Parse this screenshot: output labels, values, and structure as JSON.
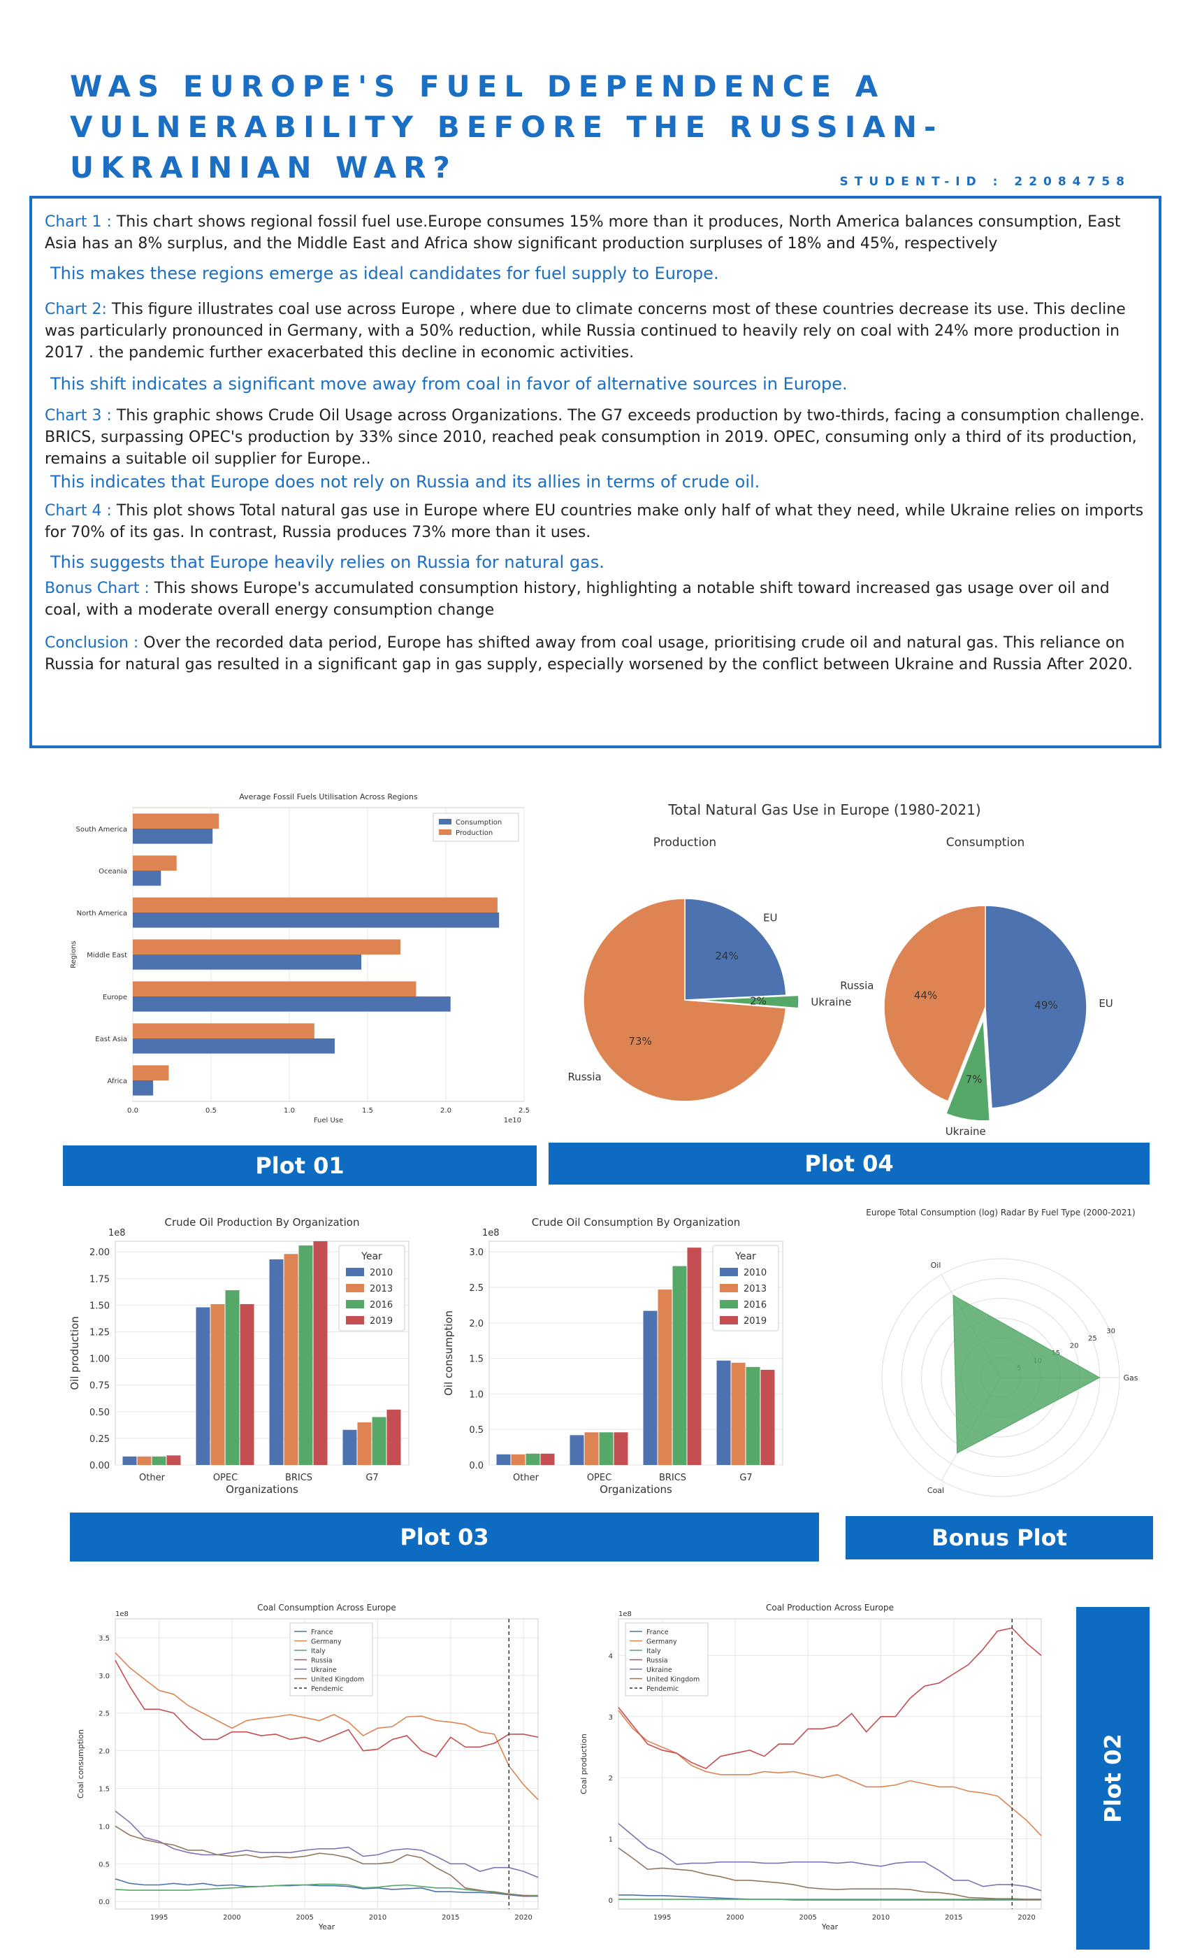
{
  "title": "WAS EUROPE'S FUEL DEPENDENCE A VULNERABILITY BEFORE THE RUSSIAN-UKRAINIAN WAR?",
  "student_id": "STUDENT-ID : 22084758",
  "summary": {
    "chart1_label": "Chart 1 :",
    "chart1_text": " This chart shows regional fossil fuel use.Europe consumes 15% more than it produces, North America balances consumption, East Asia has an 8% surplus, and the Middle East and Africa show significant production surpluses of 18% and 45%, respectively",
    "chart1_highlight": "This makes these regions emerge as ideal candidates for fuel supply to Europe.",
    "chart2_label": "Chart 2:",
    "chart2_text": " This figure illustrates coal use across Europe , where due to climate concerns most of these countries decrease its use. This decline was particularly pronounced in Germany, with a 50% reduction, while Russia continued to heavily rely on coal with 24% more production in 2017 . the pandemic further exacerbated this decline in economic activities.",
    "chart2_highlight": "This shift indicates a significant move away from coal in favor of alternative sources in Europe.",
    "chart3_label": "Chart 3 :",
    "chart3_text": " This graphic shows Crude Oil Usage across Organizations. The G7 exceeds production by two-thirds, facing a consumption challenge. BRICS, surpassing OPEC's production by 33% since 2010, reached peak consumption in 2019. OPEC, consuming only a third of its production, remains a suitable oil supplier for Europe..",
    "chart3_highlight": "This indicates that Europe does not rely on Russia and its allies in terms of crude oil.",
    "chart4_label": "Chart 4 :",
    "chart4_text": " This plot shows Total natural gas use in Europe where EU countries make only half of what they need, while Ukraine relies on imports for 70% of its gas. In contrast, Russia produces 73% more than it uses.",
    "chart4_highlight": "This suggests that Europe heavily relies on Russia for natural gas.",
    "bonus_label": "Bonus Chart :",
    "bonus_text": " This shows Europe's accumulated consumption history, highlighting a notable shift toward increased gas usage over oil and coal, with a moderate overall energy consumption change",
    "conclusion_label": "Conclusion :",
    "conclusion_text": " Over the recorded data period, Europe has shifted away from coal usage, prioritising crude oil and natural gas. This reliance on Russia for natural gas resulted in a significant gap in gas supply, especially worsened by the conflict between Ukraine and Russia After 2020."
  },
  "plot_labels": {
    "plot01": "Plot 01",
    "plot04": "Plot 04",
    "plot03": "Plot 03",
    "bonus": "Bonus Plot",
    "plot02": "Plot 02"
  },
  "colors": {
    "blue": "#4c72b0",
    "orange": "#dd8452",
    "green": "#55a868",
    "red": "#c44e52",
    "purple": "#8172b3",
    "brown": "#937860",
    "accent": "#1a6fc4",
    "bar_label": "#0d6cc1"
  },
  "chart_data": [
    {
      "id": "plot01",
      "type": "bar",
      "orientation": "horizontal",
      "title": "Average Fossil Fuels Utilisation Across Regions",
      "xlabel": "Fuel Use",
      "ylabel": "Regions",
      "x_scale_label": "1e10",
      "xlim": [
        0,
        2.5
      ],
      "xticks": [
        "0.0",
        "0.5",
        "1.0",
        "1.5",
        "2.0",
        "2.5"
      ],
      "categories": [
        "South America",
        "Oceania",
        "North America",
        "Middle East",
        "Europe",
        "East Asia",
        "Africa"
      ],
      "series": [
        {
          "name": "Consumption",
          "values": [
            0.51,
            0.18,
            2.34,
            1.46,
            2.03,
            1.29,
            0.13
          ]
        },
        {
          "name": "Production",
          "values": [
            0.55,
            0.28,
            2.33,
            1.71,
            1.81,
            1.16,
            0.23
          ]
        }
      ],
      "legend": "top-right"
    },
    {
      "id": "plot04",
      "type": "pie",
      "title": "Total Natural Gas Use in Europe (1980-2021)",
      "pies": [
        {
          "subtitle": "Production",
          "slices": [
            {
              "label": "EU",
              "value": 24,
              "pct": "24%"
            },
            {
              "label": "Ukraine",
              "value": 2,
              "pct": "2%"
            },
            {
              "label": "Russia",
              "value": 73,
              "pct": "73%"
            }
          ]
        },
        {
          "subtitle": "Consumption",
          "slices": [
            {
              "label": "EU",
              "value": 49,
              "pct": "49%"
            },
            {
              "label": "Ukraine",
              "value": 7,
              "pct": "7%"
            },
            {
              "label": "Russia",
              "value": 44,
              "pct": "44%"
            }
          ]
        }
      ]
    },
    {
      "id": "plot03a",
      "type": "bar",
      "title": "Crude Oil Production By Organization",
      "xlabel": "Organizations",
      "ylabel": "Oil production",
      "y_scale_label": "1e8",
      "ylim": [
        0,
        2.1
      ],
      "yticks": [
        "0.00",
        "0.25",
        "0.50",
        "0.75",
        "1.00",
        "1.25",
        "1.50",
        "1.75",
        "2.00"
      ],
      "categories": [
        "Other",
        "OPEC",
        "BRICS",
        "G7"
      ],
      "legend_title": "Year",
      "series": [
        {
          "name": "2010",
          "values": [
            0.08,
            1.48,
            1.93,
            0.33
          ]
        },
        {
          "name": "2013",
          "values": [
            0.08,
            1.51,
            1.98,
            0.4
          ]
        },
        {
          "name": "2016",
          "values": [
            0.08,
            1.64,
            2.06,
            0.45
          ]
        },
        {
          "name": "2019",
          "values": [
            0.09,
            1.51,
            2.1,
            0.52
          ]
        }
      ],
      "legend": "top-right"
    },
    {
      "id": "plot03b",
      "type": "bar",
      "title": "Crude Oil Consumption By Organization",
      "xlabel": "Organizations",
      "ylabel": "Oil consumption",
      "y_scale_label": "1e8",
      "ylim": [
        0,
        3.15
      ],
      "yticks": [
        "0.0",
        "0.5",
        "1.0",
        "1.5",
        "2.0",
        "2.5",
        "3.0"
      ],
      "categories": [
        "Other",
        "OPEC",
        "BRICS",
        "G7"
      ],
      "legend_title": "Year",
      "series": [
        {
          "name": "2010",
          "values": [
            0.15,
            0.42,
            2.17,
            1.47
          ]
        },
        {
          "name": "2013",
          "values": [
            0.15,
            0.46,
            2.47,
            1.44
          ]
        },
        {
          "name": "2016",
          "values": [
            0.16,
            0.46,
            2.8,
            1.38
          ]
        },
        {
          "name": "2019",
          "values": [
            0.16,
            0.46,
            3.06,
            1.34
          ]
        }
      ],
      "legend": "top-right"
    },
    {
      "id": "bonus",
      "type": "radar",
      "title": "Europe Total Consumption (log) Radar By Fuel Type (2000-2021)",
      "axes": [
        "Gas",
        "Oil",
        "Coal"
      ],
      "values": [
        25,
        24,
        22
      ],
      "rmax": 30,
      "rticks": [
        "5",
        "10",
        "15",
        "20",
        "25",
        "30"
      ]
    },
    {
      "id": "plot02a",
      "type": "line",
      "title": "Coal Consumption Across Europe",
      "xlabel": "Year",
      "ylabel": "Coal consumption",
      "y_scale_label": "1e8",
      "xlim": [
        1992,
        2021
      ],
      "ylim": [
        -0.1,
        3.75
      ],
      "xticks": [
        "1995",
        "2000",
        "2005",
        "2010",
        "2015",
        "2020"
      ],
      "yticks": [
        "0.0",
        "0.5",
        "1.0",
        "1.5",
        "2.0",
        "2.5",
        "3.0",
        "3.5"
      ],
      "x": [
        1992,
        1993,
        1994,
        1995,
        1996,
        1997,
        1998,
        1999,
        2000,
        2001,
        2002,
        2003,
        2004,
        2005,
        2006,
        2007,
        2008,
        2009,
        2010,
        2011,
        2012,
        2013,
        2014,
        2015,
        2016,
        2017,
        2018,
        2019,
        2020,
        2021
      ],
      "series": [
        {
          "name": "France",
          "values": [
            0.3,
            0.24,
            0.22,
            0.22,
            0.24,
            0.22,
            0.24,
            0.21,
            0.22,
            0.2,
            0.2,
            0.21,
            0.21,
            0.22,
            0.21,
            0.21,
            0.2,
            0.17,
            0.18,
            0.16,
            0.17,
            0.18,
            0.13,
            0.13,
            0.12,
            0.12,
            0.11,
            0.09,
            0.07,
            0.07
          ]
        },
        {
          "name": "Germany",
          "values": [
            3.3,
            3.1,
            2.95,
            2.8,
            2.75,
            2.6,
            2.5,
            2.4,
            2.3,
            2.4,
            2.43,
            2.45,
            2.48,
            2.44,
            2.4,
            2.48,
            2.38,
            2.2,
            2.3,
            2.32,
            2.45,
            2.46,
            2.4,
            2.38,
            2.35,
            2.25,
            2.22,
            1.8,
            1.55,
            1.35
          ]
        },
        {
          "name": "Italy",
          "values": [
            0.16,
            0.15,
            0.15,
            0.15,
            0.15,
            0.15,
            0.16,
            0.17,
            0.18,
            0.19,
            0.2,
            0.21,
            0.22,
            0.22,
            0.23,
            0.23,
            0.22,
            0.18,
            0.19,
            0.21,
            0.22,
            0.2,
            0.18,
            0.18,
            0.16,
            0.14,
            0.13,
            0.1,
            0.08,
            0.08
          ]
        },
        {
          "name": "Russia",
          "values": [
            3.2,
            2.85,
            2.55,
            2.55,
            2.5,
            2.3,
            2.15,
            2.15,
            2.25,
            2.25,
            2.2,
            2.22,
            2.15,
            2.18,
            2.12,
            2.2,
            2.28,
            2.0,
            2.02,
            2.15,
            2.2,
            2.0,
            1.92,
            2.18,
            2.05,
            2.05,
            2.1,
            2.22,
            2.22,
            2.18
          ]
        },
        {
          "name": "Ukraine",
          "values": [
            1.2,
            1.05,
            0.85,
            0.8,
            0.7,
            0.65,
            0.62,
            0.62,
            0.65,
            0.68,
            0.65,
            0.65,
            0.65,
            0.68,
            0.7,
            0.7,
            0.72,
            0.6,
            0.62,
            0.68,
            0.7,
            0.68,
            0.6,
            0.5,
            0.5,
            0.4,
            0.45,
            0.45,
            0.4,
            0.32
          ]
        },
        {
          "name": "United Kingdom",
          "values": [
            1.0,
            0.88,
            0.82,
            0.78,
            0.75,
            0.68,
            0.68,
            0.62,
            0.6,
            0.62,
            0.58,
            0.6,
            0.58,
            0.6,
            0.64,
            0.62,
            0.58,
            0.5,
            0.5,
            0.52,
            0.62,
            0.58,
            0.45,
            0.35,
            0.18,
            0.15,
            0.12,
            0.1,
            0.08,
            0.07
          ]
        }
      ],
      "pendemic_year": 2019,
      "legend_entries": [
        "France",
        "Germany",
        "Italy",
        "Russia",
        "Ukraine",
        "United Kingdom",
        "Pendemic"
      ],
      "legend": "top-center"
    },
    {
      "id": "plot02b",
      "type": "line",
      "title": "Coal Production Across Europe",
      "xlabel": "Year",
      "ylabel": "Coal production",
      "y_scale_label": "1e8",
      "xlim": [
        1992,
        2021
      ],
      "ylim": [
        -0.15,
        4.6
      ],
      "xticks": [
        "1995",
        "2000",
        "2005",
        "2010",
        "2015",
        "2020"
      ],
      "yticks": [
        "0",
        "1",
        "2",
        "3",
        "4"
      ],
      "x": [
        1992,
        1993,
        1994,
        1995,
        1996,
        1997,
        1998,
        1999,
        2000,
        2001,
        2002,
        2003,
        2004,
        2005,
        2006,
        2007,
        2008,
        2009,
        2010,
        2011,
        2012,
        2013,
        2014,
        2015,
        2016,
        2017,
        2018,
        2019,
        2020,
        2021
      ],
      "series": [
        {
          "name": "France",
          "values": [
            0.08,
            0.08,
            0.07,
            0.07,
            0.06,
            0.05,
            0.04,
            0.03,
            0.02,
            0.01,
            0.01,
            0.01,
            0.0,
            0.0,
            0.0,
            0.0,
            0.0,
            0.0,
            0.0,
            0.0,
            0.0,
            0.0,
            0.0,
            0.0,
            0.0,
            0.0,
            0.0,
            0.0,
            0.0,
            0.0
          ]
        },
        {
          "name": "Germany",
          "values": [
            3.1,
            2.8,
            2.6,
            2.5,
            2.4,
            2.2,
            2.1,
            2.05,
            2.05,
            2.05,
            2.1,
            2.08,
            2.1,
            2.05,
            2.0,
            2.05,
            1.95,
            1.85,
            1.85,
            1.88,
            1.95,
            1.9,
            1.85,
            1.85,
            1.78,
            1.75,
            1.7,
            1.5,
            1.3,
            1.05
          ]
        },
        {
          "name": "Italy",
          "values": [
            0.01,
            0.01,
            0.01,
            0.01,
            0.01,
            0.01,
            0.01,
            0.01,
            0.01,
            0.01,
            0.01,
            0.01,
            0.01,
            0.01,
            0.01,
            0.01,
            0.01,
            0.01,
            0.01,
            0.01,
            0.01,
            0.01,
            0.01,
            0.01,
            0.01,
            0.01,
            0.01,
            0.01,
            0.01,
            0.01
          ]
        },
        {
          "name": "Russia",
          "values": [
            3.15,
            2.85,
            2.55,
            2.45,
            2.4,
            2.25,
            2.15,
            2.35,
            2.4,
            2.45,
            2.35,
            2.55,
            2.55,
            2.8,
            2.8,
            2.85,
            3.05,
            2.75,
            3.0,
            3.0,
            3.3,
            3.5,
            3.55,
            3.7,
            3.85,
            4.1,
            4.4,
            4.45,
            4.2,
            4.0
          ]
        },
        {
          "name": "Ukraine",
          "values": [
            1.25,
            1.05,
            0.85,
            0.75,
            0.58,
            0.6,
            0.6,
            0.62,
            0.62,
            0.62,
            0.6,
            0.6,
            0.62,
            0.62,
            0.62,
            0.6,
            0.62,
            0.58,
            0.55,
            0.6,
            0.62,
            0.62,
            0.48,
            0.32,
            0.32,
            0.22,
            0.25,
            0.25,
            0.22,
            0.15
          ]
        },
        {
          "name": "United Kingdom",
          "values": [
            0.85,
            0.68,
            0.5,
            0.52,
            0.5,
            0.48,
            0.42,
            0.38,
            0.32,
            0.32,
            0.3,
            0.28,
            0.25,
            0.2,
            0.18,
            0.17,
            0.18,
            0.18,
            0.18,
            0.18,
            0.17,
            0.13,
            0.12,
            0.09,
            0.04,
            0.03,
            0.02,
            0.02,
            0.01,
            0.01
          ]
        }
      ],
      "pendemic_year": 2019,
      "legend_entries": [
        "France",
        "Germany",
        "Italy",
        "Russia",
        "Ukraine",
        "United Kingdom",
        "Pendemic"
      ],
      "legend": "top-left"
    }
  ]
}
